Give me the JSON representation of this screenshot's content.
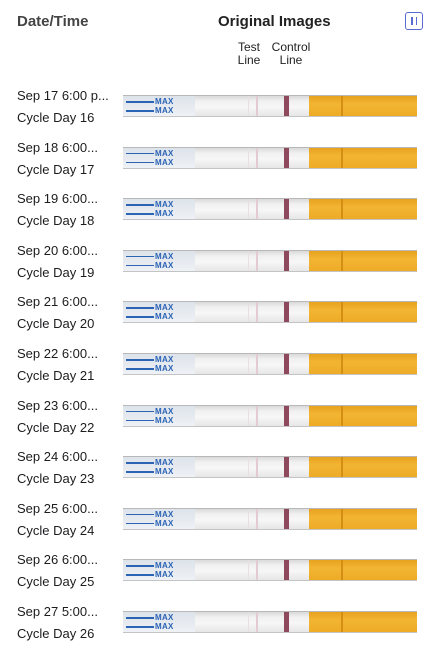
{
  "header": {
    "date_col": "Date/Time",
    "title": "Original Images",
    "compare_icon": "pause-bars-icon"
  },
  "columns": {
    "test": "Test\nLine",
    "test_top": "Test",
    "test_bottom": "Line",
    "ctrl_top": "Control",
    "ctrl_bottom": "Line"
  },
  "colors": {
    "accent": "#5a6bd1",
    "control_line": "#8e4a5c",
    "handle": "#f2b533",
    "strip_text": "#2b63b5"
  },
  "rows": [
    {
      "datetime": "Sep 17 6:00 p...",
      "cycle_day": "Cycle Day 16",
      "strip_text": "MAX"
    },
    {
      "datetime": "Sep 18 6:00...",
      "cycle_day": "Cycle Day 17",
      "strip_text": "MAX"
    },
    {
      "datetime": "Sep 19 6:00...",
      "cycle_day": "Cycle Day 18",
      "strip_text": "MAX"
    },
    {
      "datetime": "Sep 20 6:00...",
      "cycle_day": "Cycle Day 19",
      "strip_text": "MAX"
    },
    {
      "datetime": "Sep 21 6:00...",
      "cycle_day": "Cycle Day 20",
      "strip_text": "MAX"
    },
    {
      "datetime": "Sep 22 6:00...",
      "cycle_day": "Cycle Day 21",
      "strip_text": "MAX"
    },
    {
      "datetime": "Sep 23 6:00...",
      "cycle_day": "Cycle Day 22",
      "strip_text": "MAX"
    },
    {
      "datetime": "Sep 24 6:00...",
      "cycle_day": "Cycle Day 23",
      "strip_text": "MAX"
    },
    {
      "datetime": "Sep 25 6:00...",
      "cycle_day": "Cycle Day 24",
      "strip_text": "MAX"
    },
    {
      "datetime": "Sep 26 6:00...",
      "cycle_day": "Cycle Day 25",
      "strip_text": "MAX"
    },
    {
      "datetime": "Sep 27 5:00...",
      "cycle_day": "Cycle Day 26",
      "strip_text": "MAX"
    }
  ]
}
